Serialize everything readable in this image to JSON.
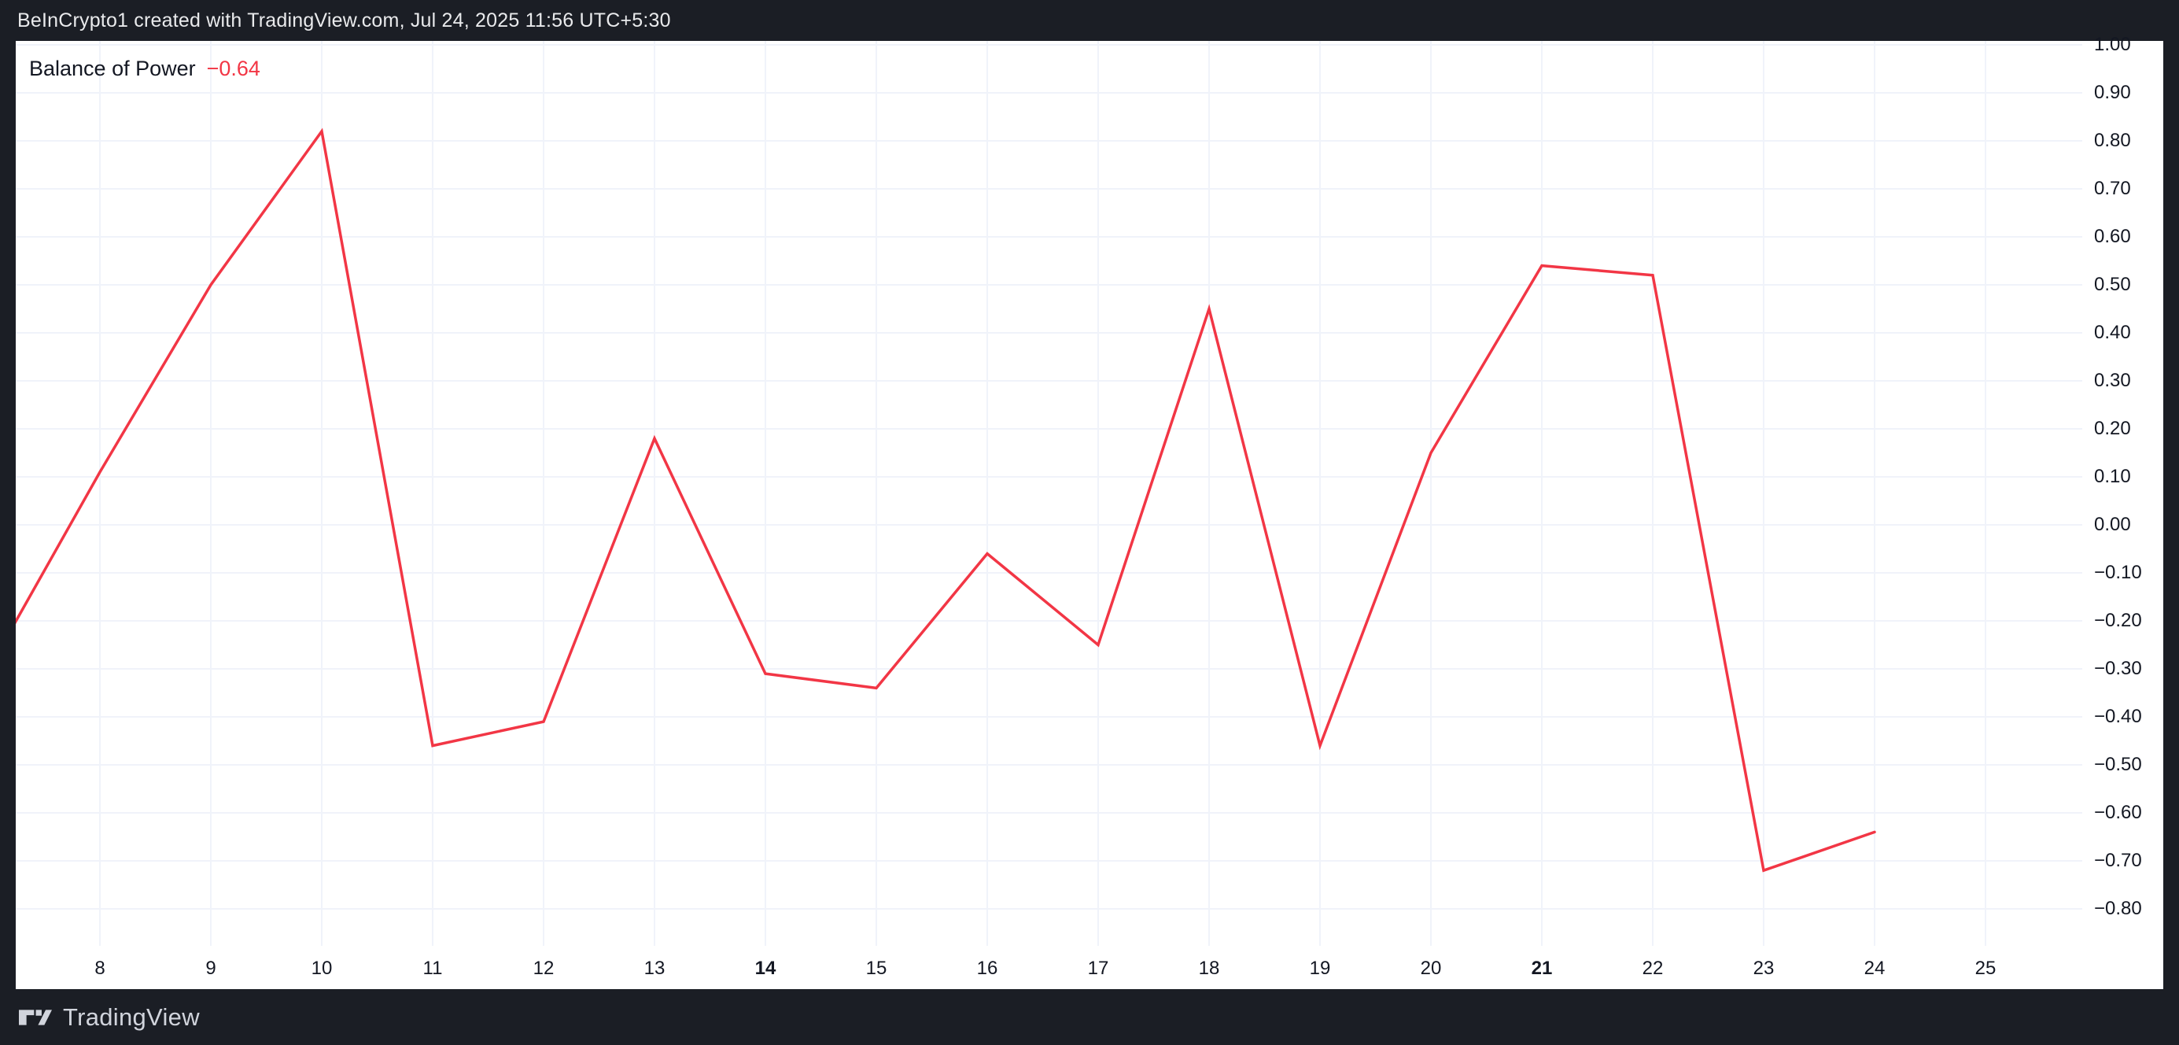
{
  "header": {
    "title": "BeInCrypto1 created with TradingView.com, Jul 24, 2025 11:56 UTC+5:30"
  },
  "indicator": {
    "name": "Balance of Power",
    "value": "−0.64",
    "value_color": "#f23645"
  },
  "footer": {
    "brand": "TradingView"
  },
  "colors": {
    "background": "#1b1e25",
    "panel": "#ffffff",
    "grid": "#f0f3fa",
    "line": "#f23645",
    "axis_text": "#131722",
    "header_text": "#e9eaec",
    "footer_text": "#d1d4dc"
  },
  "chart_data": {
    "type": "line",
    "title": "Balance of Power",
    "last_value": -0.64,
    "grid": true,
    "legend_position": "top-left",
    "ylim": [
      -0.88,
      1.0
    ],
    "xlim": [
      7.24,
      25.87
    ],
    "series": [
      {
        "name": "Balance of Power",
        "color": "#f23645",
        "x": [
          7,
          8,
          9,
          10,
          11,
          12,
          13,
          14,
          15,
          16,
          17,
          18,
          19,
          20,
          21,
          22,
          23,
          24
        ],
        "values": [
          -0.3,
          0.11,
          0.5,
          0.82,
          -0.46,
          -0.41,
          0.18,
          -0.31,
          -0.34,
          -0.06,
          -0.25,
          0.45,
          -0.46,
          0.15,
          0.54,
          0.52,
          -0.72,
          -0.64
        ]
      }
    ],
    "x_ticks": [
      {
        "label": "8",
        "value": 8,
        "bold": false
      },
      {
        "label": "9",
        "value": 9,
        "bold": false
      },
      {
        "label": "10",
        "value": 10,
        "bold": false
      },
      {
        "label": "11",
        "value": 11,
        "bold": false
      },
      {
        "label": "12",
        "value": 12,
        "bold": false
      },
      {
        "label": "13",
        "value": 13,
        "bold": false
      },
      {
        "label": "14",
        "value": 14,
        "bold": true
      },
      {
        "label": "15",
        "value": 15,
        "bold": false
      },
      {
        "label": "16",
        "value": 16,
        "bold": false
      },
      {
        "label": "17",
        "value": 17,
        "bold": false
      },
      {
        "label": "18",
        "value": 18,
        "bold": false
      },
      {
        "label": "19",
        "value": 19,
        "bold": false
      },
      {
        "label": "20",
        "value": 20,
        "bold": false
      },
      {
        "label": "21",
        "value": 21,
        "bold": true
      },
      {
        "label": "22",
        "value": 22,
        "bold": false
      },
      {
        "label": "23",
        "value": 23,
        "bold": false
      },
      {
        "label": "24",
        "value": 24,
        "bold": false
      },
      {
        "label": "25",
        "value": 25,
        "bold": false
      }
    ],
    "y_ticks": [
      {
        "label": "1.00",
        "value": 1.0
      },
      {
        "label": "0.90",
        "value": 0.9
      },
      {
        "label": "0.80",
        "value": 0.8
      },
      {
        "label": "0.70",
        "value": 0.7
      },
      {
        "label": "0.60",
        "value": 0.6
      },
      {
        "label": "0.50",
        "value": 0.5
      },
      {
        "label": "0.40",
        "value": 0.4
      },
      {
        "label": "0.30",
        "value": 0.3
      },
      {
        "label": "0.20",
        "value": 0.2
      },
      {
        "label": "0.10",
        "value": 0.1
      },
      {
        "label": "0.00",
        "value": 0.0
      },
      {
        "label": "−0.10",
        "value": -0.1
      },
      {
        "label": "−0.20",
        "value": -0.2
      },
      {
        "label": "−0.30",
        "value": -0.3
      },
      {
        "label": "−0.40",
        "value": -0.4
      },
      {
        "label": "−0.50",
        "value": -0.5
      },
      {
        "label": "−0.60",
        "value": -0.6
      },
      {
        "label": "−0.70",
        "value": -0.7
      },
      {
        "label": "−0.80",
        "value": -0.8
      }
    ]
  }
}
